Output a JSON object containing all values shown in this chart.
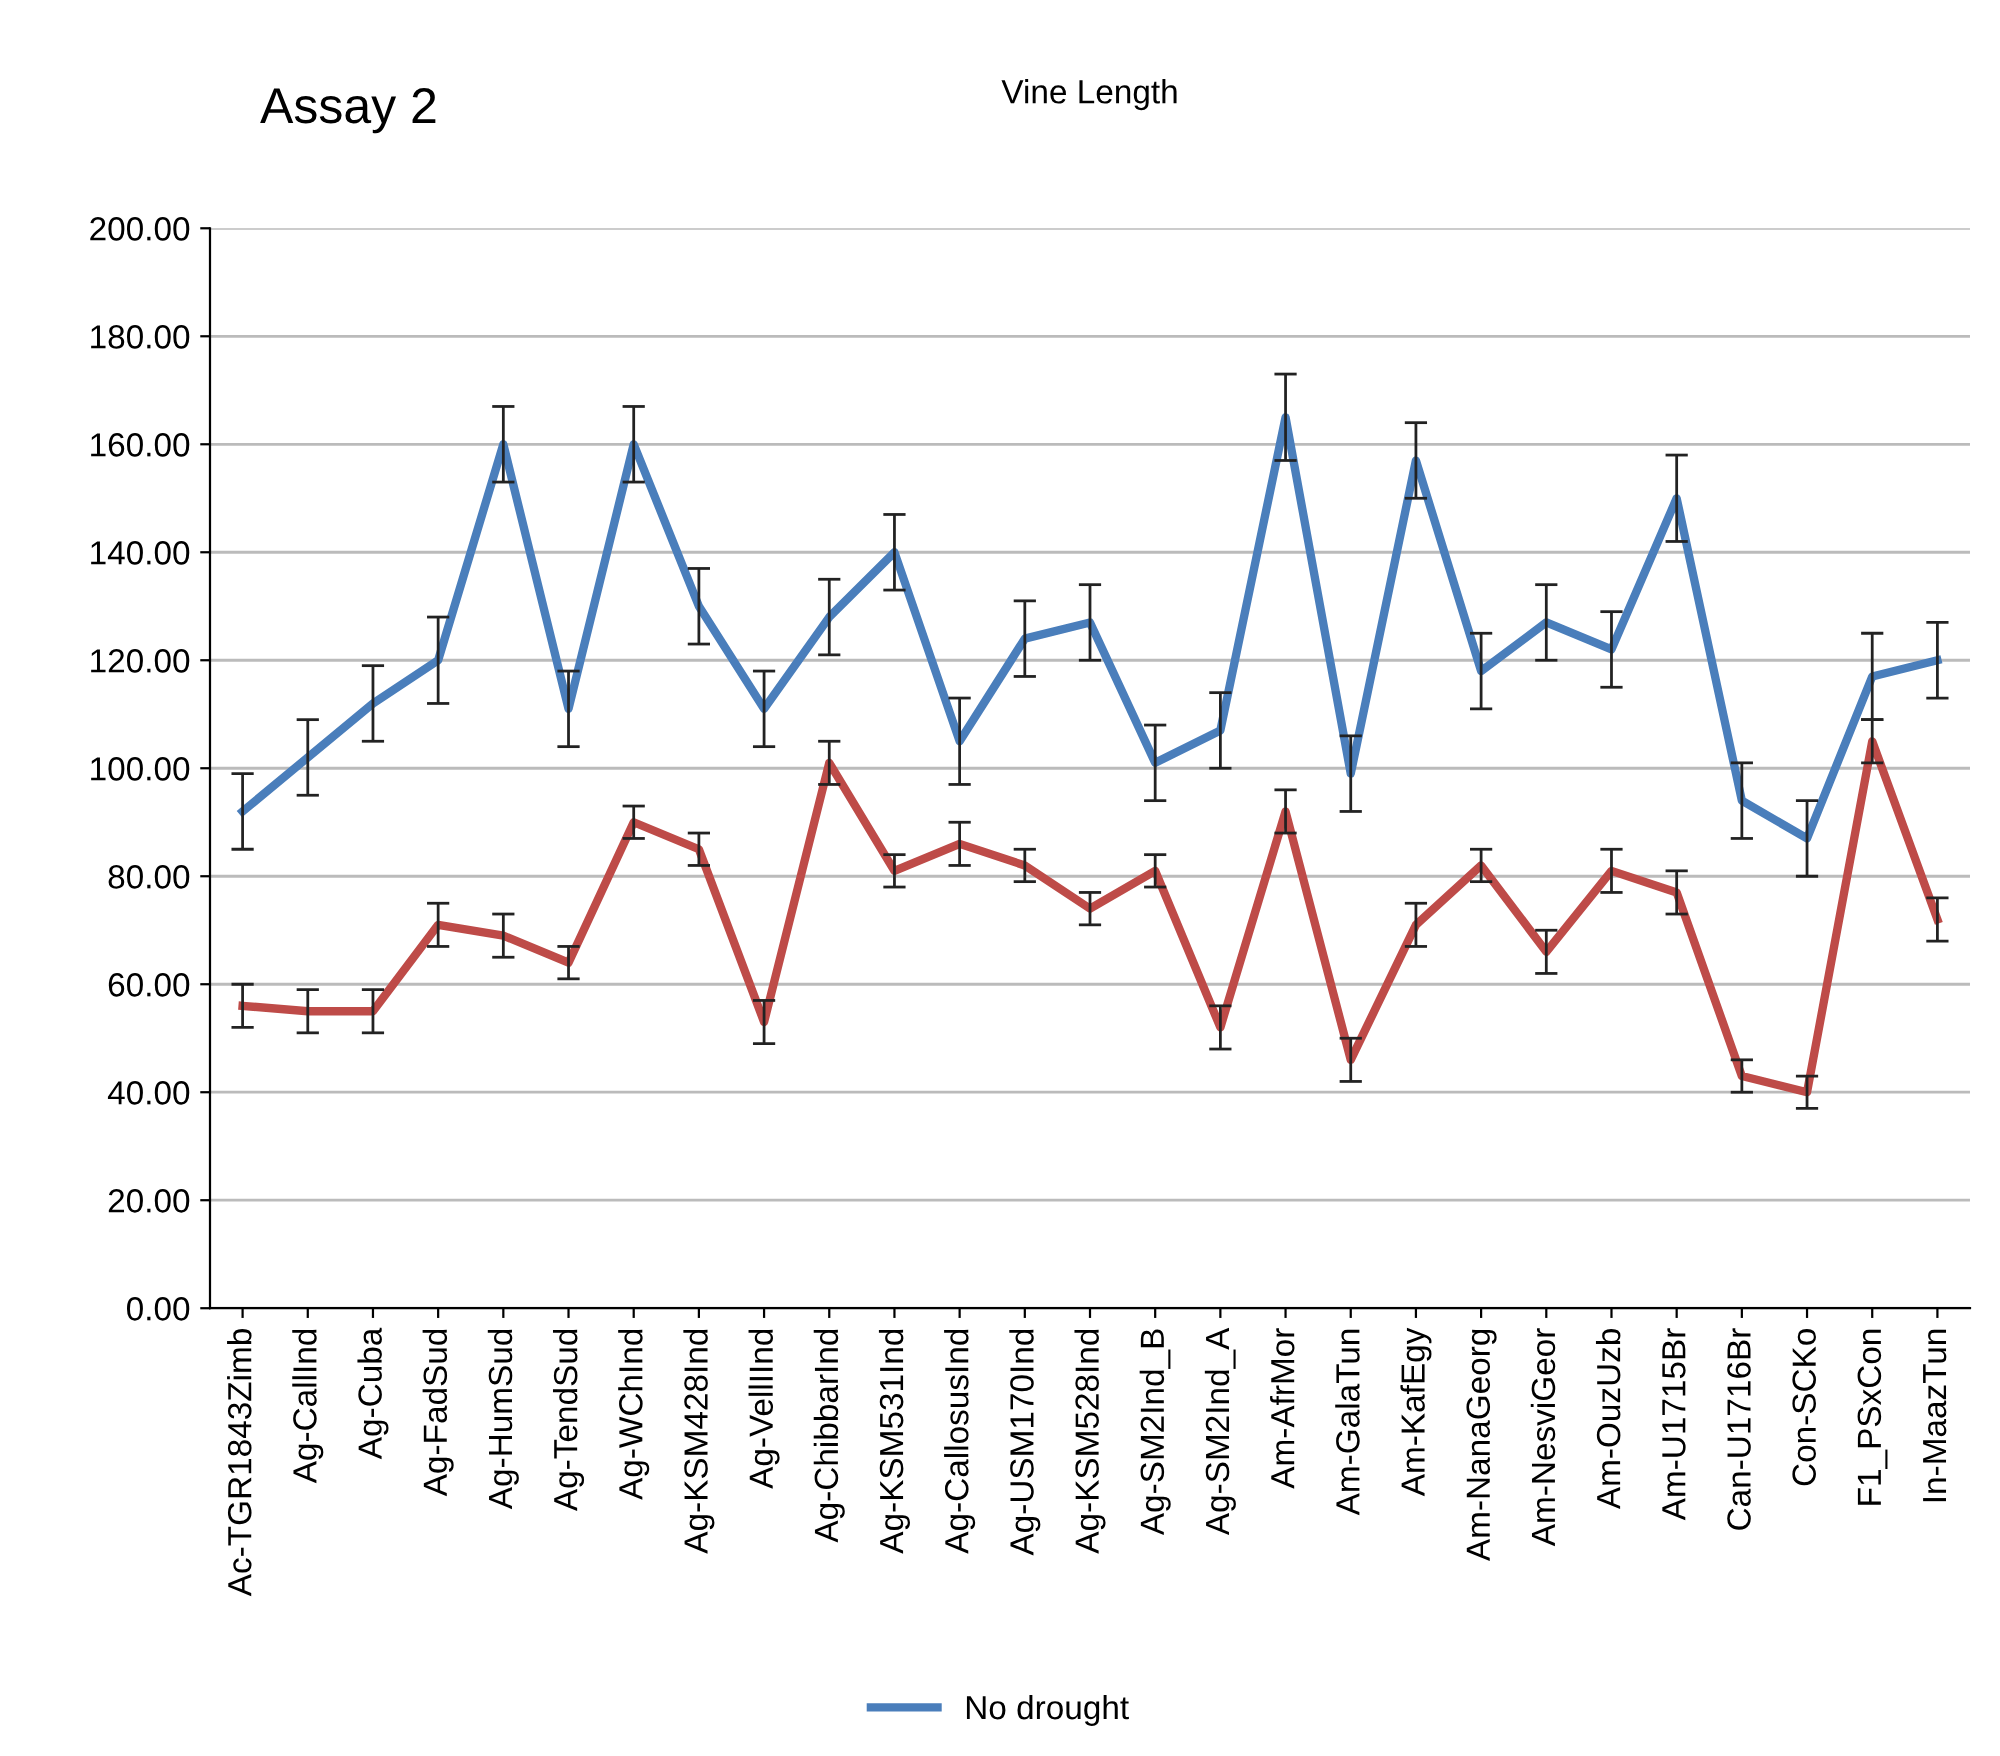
{
  "chart_data": {
    "type": "line",
    "title": "Vine Length",
    "annotations": [
      "Assay 2"
    ],
    "categories": [
      "Ac-TGR1843Zimb",
      "Ag-CallInd",
      "Ag-Cuba",
      "Ag-FadSud",
      "Ag-HumSud",
      "Ag-TendSud",
      "Ag-WChInd",
      "Ag-KSM428Ind",
      "Ag-VellIInd",
      "Ag-ChibbarInd",
      "Ag-KSM531Ind",
      "Ag-CallosusInd",
      "Ag-USM170Ind",
      "Ag-KSM528Ind",
      "Ag-SM2Ind_B",
      "Ag-SM2Ind_A",
      "Am-AfrMor",
      "Am-GalaTun",
      "Am-KafEgy",
      "Am-NanaGeorg",
      "Am-NesviGeor",
      "Am-OuzUzb",
      "Am-U1715Br",
      "Can-U1716Br",
      "Con-SCKo",
      "F1_PSxCon",
      "In-MaazTun"
    ],
    "series": [
      {
        "name": "No drought",
        "color": "#4a7ebb",
        "values": [
          92,
          102,
          112,
          120,
          160,
          111,
          160,
          130,
          111,
          128,
          140,
          105,
          124,
          127,
          101,
          107,
          165,
          99,
          157,
          118,
          127,
          122,
          150,
          94,
          87,
          117,
          120
        ],
        "errors": [
          7,
          7,
          7,
          8,
          7,
          7,
          7,
          7,
          7,
          7,
          7,
          8,
          7,
          7,
          7,
          7,
          8,
          7,
          7,
          7,
          7,
          7,
          8,
          7,
          7,
          8,
          7
        ]
      },
      {
        "color": "#be4b48",
        "values": [
          56,
          55,
          55,
          71,
          69,
          64,
          90,
          85,
          53,
          101,
          81,
          86,
          82,
          74,
          81,
          52,
          92,
          46,
          71,
          82,
          66,
          81,
          77,
          43,
          40,
          105,
          72
        ],
        "errors": [
          4,
          4,
          4,
          4,
          4,
          3,
          3,
          3,
          4,
          4,
          3,
          4,
          3,
          3,
          3,
          4,
          4,
          4,
          4,
          3,
          4,
          4,
          4,
          3,
          3,
          4,
          4
        ]
      }
    ],
    "ylim": [
      0,
      200
    ],
    "yticks": [
      {
        "value": 0,
        "label": "0.00"
      },
      {
        "value": 20,
        "label": "20.00"
      },
      {
        "value": 40,
        "label": "40.00"
      },
      {
        "value": 60,
        "label": "60.00"
      },
      {
        "value": 80,
        "label": "80.00"
      },
      {
        "value": 100,
        "label": "100.00"
      },
      {
        "value": 120,
        "label": "120.00"
      },
      {
        "value": 140,
        "label": "140.00"
      },
      {
        "value": 160,
        "label": "160.00"
      },
      {
        "value": 180,
        "label": "180.00"
      },
      {
        "value": 200,
        "label": "200.00"
      }
    ],
    "grid": "y",
    "legend": "bottom",
    "marker": "none",
    "line_style": "solid"
  }
}
